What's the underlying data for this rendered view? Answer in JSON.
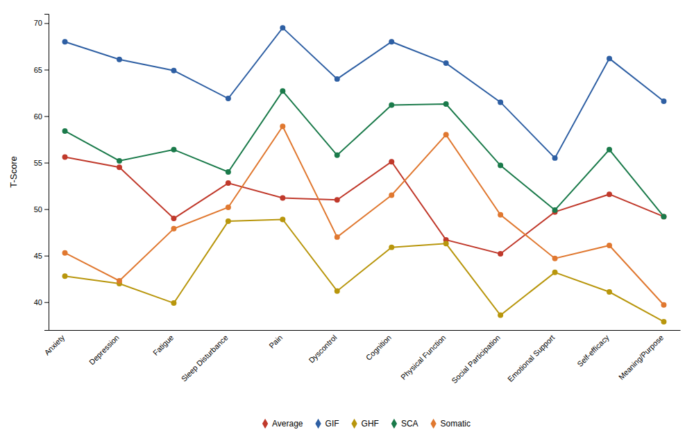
{
  "chart_data": {
    "type": "line",
    "categories": [
      "Anxiety",
      "Depression",
      "Fatigue",
      "Sleep Disturbance",
      "Pain",
      "Dyscontrol",
      "Cognition",
      "Physical Function",
      "Social Participation",
      "Emotional Support",
      "Self-efficacy",
      "Meaning/Purpose"
    ],
    "series": [
      {
        "name": "Average",
        "color": "#c0392b",
        "values": [
          55.6,
          54.5,
          49.0,
          52.8,
          51.2,
          51.0,
          55.1,
          46.7,
          45.2,
          49.7,
          51.6,
          49.2
        ]
      },
      {
        "name": "GIF",
        "color": "#2e5fa3",
        "values": [
          68.0,
          66.1,
          64.9,
          61.9,
          69.5,
          64.0,
          68.0,
          65.7,
          61.5,
          55.5,
          66.2,
          61.6
        ]
      },
      {
        "name": "GHF",
        "color": "#b8960c",
        "values": [
          42.8,
          42.0,
          39.9,
          48.7,
          48.9,
          41.2,
          45.9,
          46.3,
          38.6,
          43.2,
          41.1,
          37.9
        ]
      },
      {
        "name": "SCA",
        "color": "#1a7a4a",
        "values": [
          58.4,
          55.2,
          56.4,
          54.0,
          62.7,
          55.8,
          61.2,
          61.3,
          54.7,
          49.9,
          56.4,
          49.2
        ]
      },
      {
        "name": "Somatic",
        "color": "#e07830",
        "values": [
          45.3,
          42.3,
          47.9,
          50.2,
          58.9,
          47.0,
          51.5,
          58.0,
          49.4,
          44.7,
          46.1,
          39.7
        ]
      }
    ],
    "ylabel": "T-Score",
    "ylim": [
      37,
      71
    ],
    "yticks": [
      40,
      45,
      50,
      55,
      60,
      65,
      70
    ],
    "marker": "circle",
    "grid": false,
    "legend": "bottom"
  }
}
